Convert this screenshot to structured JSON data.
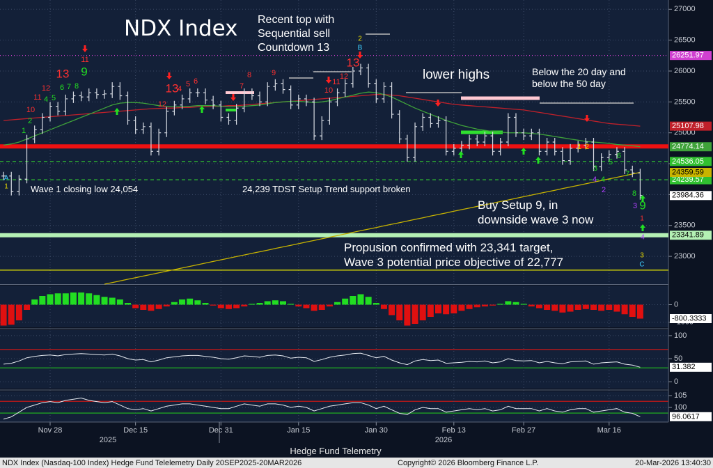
{
  "chart_data": [
    {
      "type": "price-bars",
      "title": "NDX Index",
      "xlabel": "Hedge Fund Telemetry",
      "x_group_labels": [
        "2025",
        "2026"
      ],
      "categories": [
        null,
        null,
        null,
        null,
        null,
        null,
        "Nov 28",
        null,
        null,
        null,
        null,
        null,
        null,
        null,
        null,
        null,
        null,
        "Dec 15",
        null,
        null,
        null,
        null,
        null,
        null,
        null,
        null,
        null,
        null,
        "Dec 31",
        null,
        null,
        null,
        null,
        null,
        null,
        null,
        null,
        null,
        "Jan 15",
        null,
        null,
        null,
        null,
        null,
        null,
        null,
        null,
        null,
        "Jan 30",
        null,
        null,
        null,
        null,
        null,
        null,
        null,
        null,
        null,
        "Feb 13",
        null,
        null,
        null,
        null,
        null,
        null,
        null,
        null,
        "Feb 27",
        null,
        null,
        null,
        null,
        null,
        null,
        null,
        null,
        null,
        null,
        "Mar 16",
        null,
        null,
        null,
        null
      ],
      "color": "#d8dce4",
      "tag": true,
      "values": [
        24300,
        24054,
        24250,
        24900,
        25050,
        25250,
        25430,
        25350,
        25550,
        25600,
        25580,
        25650,
        25620,
        25630,
        25750,
        25600,
        25200,
        25050,
        25100,
        24700,
        25000,
        25350,
        25450,
        25550,
        25650,
        25650,
        25530,
        25450,
        25250,
        25200,
        25400,
        25650,
        25600,
        25500,
        25750,
        25800,
        25700,
        25450,
        25550,
        25500,
        24950,
        25200,
        25500,
        25650,
        25800,
        26000,
        26050,
        25800,
        25550,
        25750,
        25300,
        24900,
        24600,
        25100,
        25250,
        25150,
        25200,
        24700,
        24750,
        24800,
        24900,
        24850,
        24950,
        24700,
        24850,
        25250,
        25000,
        24950,
        25000,
        24700,
        24850,
        24700,
        24550,
        24750,
        24800,
        24850,
        24450,
        24600,
        24650,
        24700,
        24400,
        24350,
        23984.36
      ],
      "overlays": [
        {
          "color": "#c0202a",
          "tag": true,
          "values": [
            25200,
            25210,
            25220,
            25230,
            25240,
            25250,
            25260,
            25270,
            25280,
            25290,
            25300,
            25310,
            25320,
            25330,
            25340,
            25350,
            25360,
            25370,
            25380,
            25390,
            25395,
            25400,
            25400,
            25410,
            25410,
            25420,
            25420,
            25430,
            25430,
            25440,
            25440,
            25450,
            25460,
            25470,
            25480,
            25490,
            25500,
            25510,
            25520,
            25530,
            25540,
            25550,
            25560,
            25570,
            25580,
            25590,
            25600,
            25610,
            25620,
            25620,
            25610,
            25600,
            25580,
            25560,
            25540,
            25520,
            25500,
            25480,
            25460,
            25450,
            25440,
            25430,
            25420,
            25410,
            25400,
            25390,
            25380,
            25370,
            25350,
            25330,
            25310,
            25290,
            25270,
            25250,
            25230,
            25210,
            25190,
            25170,
            25150,
            25140,
            25130,
            25120,
            25107.98
          ]
        },
        {
          "color": "#3fa23a",
          "tag": true,
          "values": [
            24800,
            24820,
            24850,
            24900,
            24950,
            25000,
            25050,
            25100,
            25150,
            25200,
            25250,
            25300,
            25350,
            25400,
            25450,
            25480,
            25490,
            25490,
            25480,
            25460,
            25440,
            25430,
            25420,
            25420,
            25430,
            25440,
            25440,
            25440,
            25430,
            25420,
            25420,
            25430,
            25440,
            25450,
            25470,
            25490,
            25500,
            25510,
            25510,
            25500,
            25490,
            25500,
            25520,
            25550,
            25580,
            25610,
            25640,
            25660,
            25650,
            25620,
            25580,
            25520,
            25460,
            25400,
            25350,
            25300,
            25250,
            25200,
            25160,
            25120,
            25090,
            25060,
            25040,
            25020,
            25010,
            25000,
            25000,
            25000,
            24990,
            24980,
            24960,
            24940,
            24920,
            24900,
            24880,
            24860,
            24850,
            24840,
            24830,
            24810,
            24800,
            24790,
            24774.14
          ]
        },
        {
          "color": "#c8b400",
          "tag": true,
          "values": [
            null,
            null,
            null,
            null,
            null,
            null,
            null,
            null,
            null,
            null,
            null,
            null,
            null,
            22550,
            22576,
            22602,
            22629,
            22655,
            22681,
            22707,
            22733,
            22760,
            22786,
            22812,
            22838,
            22865,
            22891,
            22917,
            22943,
            22969,
            22996,
            23022,
            23048,
            23074,
            23100,
            23127,
            23153,
            23179,
            23205,
            23232,
            23258,
            23284,
            23310,
            23336,
            23363,
            23389,
            23415,
            23441,
            23467,
            23494,
            23520,
            23546,
            23572,
            23598,
            23625,
            23651,
            23677,
            23703,
            23730,
            23756,
            23782,
            23808,
            23834,
            23861,
            23887,
            23913,
            23939,
            23966,
            23992,
            24018,
            24044,
            24070,
            24097,
            24123,
            24149,
            24175,
            24202,
            24228,
            24254,
            24280,
            24306,
            24333,
            24359.59
          ]
        }
      ],
      "levels": [
        {
          "value": 26251.97,
          "color": "#d040d0",
          "style": "dotted",
          "tag": true
        },
        {
          "value": 24780,
          "color": "#ee1111",
          "style": "thick",
          "tag": false
        },
        {
          "value": 24536.05,
          "color": "#30c030",
          "style": "dashed",
          "tag": true
        },
        {
          "value": 24239.57,
          "color": "#30c030",
          "style": "dashed",
          "tag": true
        },
        {
          "value": 23341.89,
          "color": "#b4f0b4",
          "style": "thick",
          "tag": true
        },
        {
          "value": 22777,
          "color": "#e6e600",
          "style": "solid",
          "tag": false
        }
      ],
      "ylim": [
        22550,
        27150
      ],
      "yticks": [
        23000,
        23500,
        24000,
        24500,
        25000,
        25500,
        26000,
        26500,
        27000
      ],
      "grid": true,
      "annotations": [
        {
          "color": "#ffffff",
          "lines": [
            "Recent top with",
            "Sequential sell",
            "Countdown 13"
          ]
        },
        {
          "color": "#ffffff",
          "lines": [
            "lower highs"
          ]
        },
        {
          "color": "#ffffff",
          "lines": [
            "Below the 20 day and",
            "below the 50 day"
          ]
        },
        {
          "color": "#ffffff",
          "lines": [
            "Wave 1 closing low 24,054"
          ]
        },
        {
          "color": "#ffffff",
          "lines": [
            "24,239 TDST Setup Trend support broken"
          ]
        },
        {
          "color": "#ffffff",
          "lines": [
            "Buy Setup 9, in",
            "downside wave 3 now"
          ]
        },
        {
          "color": "#ffffff",
          "lines": [
            "Propusion confirmed with 23,341 target,",
            "Wave 3 potential price objective of 22,777"
          ]
        }
      ],
      "td_labels": [
        {
          "text": "A",
          "color": "#40d0ff"
        },
        {
          "text": "1",
          "color": "#e6d800"
        },
        {
          "text": "1",
          "color": "#22dd22"
        },
        {
          "text": "2",
          "color": "#22dd22"
        },
        {
          "text": "10",
          "color": "#ff3030"
        },
        {
          "text": "11",
          "color": "#ff3030"
        },
        {
          "text": "12",
          "color": "#ff3030"
        },
        {
          "text": "4",
          "color": "#22dd22"
        },
        {
          "text": "5",
          "color": "#22dd22"
        },
        {
          "text": "6",
          "color": "#22dd22"
        },
        {
          "text": "7",
          "color": "#22dd22"
        },
        {
          "text": "8",
          "color": "#22dd22"
        },
        {
          "text": "13",
          "color": "#ff3030"
        },
        {
          "text": "9",
          "color": "#22dd22"
        },
        {
          "text": "11",
          "color": "#ff3030"
        },
        {
          "text": "12",
          "color": "#ff3030"
        },
        {
          "text": "13",
          "color": "#ff3030"
        },
        {
          "text": "4",
          "color": "#ff3030"
        },
        {
          "text": "5",
          "color": "#ff3030"
        },
        {
          "text": "6",
          "color": "#ff3030"
        },
        {
          "text": "7",
          "color": "#ff3030"
        },
        {
          "text": "8",
          "color": "#ff3030"
        },
        {
          "text": "9",
          "color": "#ff3030"
        },
        {
          "text": "10",
          "color": "#ff3030"
        },
        {
          "text": "11",
          "color": "#ff3030"
        },
        {
          "text": "12",
          "color": "#ff3030"
        },
        {
          "text": "13",
          "color": "#ff3030"
        },
        {
          "text": "2",
          "color": "#e6d800"
        },
        {
          "text": "B",
          "color": "#40d0ff"
        },
        {
          "text": "1",
          "color": "#e6d800"
        },
        {
          "text": "2",
          "color": "#e6d800"
        },
        {
          "text": "3",
          "color": "#22dd22"
        },
        {
          "text": "4",
          "color": "#22dd22"
        },
        {
          "text": "4",
          "color": "#b040ff"
        },
        {
          "text": "2",
          "color": "#b040ff"
        },
        {
          "text": "5",
          "color": "#22dd22"
        },
        {
          "text": "6",
          "color": "#22dd22"
        },
        {
          "text": "7",
          "color": "#22dd22"
        },
        {
          "text": "8",
          "color": "#22dd22"
        },
        {
          "text": "9",
          "color": "#22dd22"
        },
        {
          "text": "3",
          "color": "#b040ff"
        },
        {
          "text": "1",
          "color": "#ff3030"
        },
        {
          "text": "4",
          "color": "#b040ff"
        },
        {
          "text": "3",
          "color": "#e6d800"
        },
        {
          "text": "C",
          "color": "#40d0ff"
        }
      ]
    },
    {
      "type": "bar",
      "color_up": "#22dd22",
      "color_down": "#e01010",
      "tag": true,
      "values": [
        -1200,
        -1150,
        -900,
        -300,
        300,
        500,
        600,
        650,
        650,
        700,
        700,
        650,
        550,
        450,
        400,
        300,
        100,
        -200,
        -300,
        -350,
        -250,
        -100,
        150,
        300,
        350,
        250,
        100,
        -50,
        -200,
        -250,
        -200,
        -100,
        50,
        100,
        200,
        250,
        200,
        50,
        -100,
        -200,
        -350,
        -300,
        -100,
        150,
        350,
        500,
        600,
        450,
        100,
        -250,
        -600,
        -900,
        -1200,
        -1100,
        -900,
        -700,
        -500,
        -550,
        -500,
        -350,
        -250,
        -150,
        -100,
        -50,
        50,
        200,
        150,
        50,
        -100,
        -200,
        -300,
        -350,
        -450,
        -400,
        -300,
        -250,
        -300,
        -350,
        -300,
        -400,
        -550,
        -700,
        -800.3333
      ],
      "ylim": [
        -1300,
        1100
      ],
      "yticks": [
        0,
        -1000
      ],
      "grid": true
    },
    {
      "type": "line",
      "color": "#e8ecf2",
      "tag": true,
      "values": [
        38,
        40,
        45,
        52,
        55,
        57,
        58,
        56,
        59,
        60,
        61,
        60,
        59,
        58,
        60,
        56,
        50,
        47,
        48,
        43,
        47,
        52,
        54,
        56,
        57,
        57,
        55,
        53,
        50,
        49,
        52,
        56,
        55,
        53,
        57,
        58,
        56,
        51,
        53,
        52,
        44,
        48,
        53,
        56,
        58,
        61,
        62,
        57,
        52,
        55,
        47,
        41,
        37,
        45,
        48,
        46,
        47,
        40,
        41,
        42,
        44,
        43,
        45,
        41,
        43,
        50,
        46,
        45,
        46,
        41,
        44,
        41,
        39,
        43,
        44,
        45,
        38,
        41,
        42,
        43,
        38,
        36,
        31.382
      ],
      "ref_lines": [
        {
          "value": 70,
          "color": "#c01818"
        },
        {
          "value": 30,
          "color": "#20b020"
        }
      ],
      "ylim": [
        -15,
        112
      ],
      "yticks": [
        100,
        50,
        0
      ],
      "grid": true
    },
    {
      "type": "line",
      "color": "#e8ecf2",
      "tag": true,
      "values": [
        95,
        96,
        98,
        100,
        101,
        102,
        102.5,
        102,
        103,
        103.5,
        104,
        103,
        102.5,
        102,
        102.5,
        101,
        99.5,
        99,
        99.5,
        98.5,
        99.5,
        100.5,
        101,
        101.5,
        101.5,
        101,
        100.5,
        100,
        99.5,
        99.5,
        100.5,
        101.5,
        101,
        100.5,
        101.5,
        101.5,
        101,
        100,
        100.5,
        100,
        98.5,
        99.5,
        100.5,
        101,
        101.5,
        102,
        102,
        101,
        99.5,
        100.5,
        99,
        97.5,
        97,
        99,
        100,
        99.5,
        99.5,
        98,
        98.5,
        99,
        99.5,
        99,
        99.5,
        98.5,
        99,
        100.5,
        99.5,
        99.5,
        99.5,
        98.5,
        99.5,
        98.5,
        98,
        99,
        99.5,
        99.5,
        98,
        98.5,
        99,
        99.5,
        98,
        97.5,
        96.0617
      ],
      "ref_lines": [
        {
          "value": 102.6,
          "color": "#c01818"
        },
        {
          "value": 97.6,
          "color": "#20b020"
        }
      ],
      "ylim": [
        93.8,
        106.8
      ],
      "yticks": [
        105,
        100
      ],
      "grid": true
    }
  ],
  "footer": {
    "left": "NDX Index (Nasdaq-100 Index) Hedge Fund Telelemetry Daily 20SEP2025-20MAR2026",
    "center": "Copyright© 2026 Bloomberg Finance L.P.",
    "right": "20-Mar-2026 13:40:30"
  }
}
